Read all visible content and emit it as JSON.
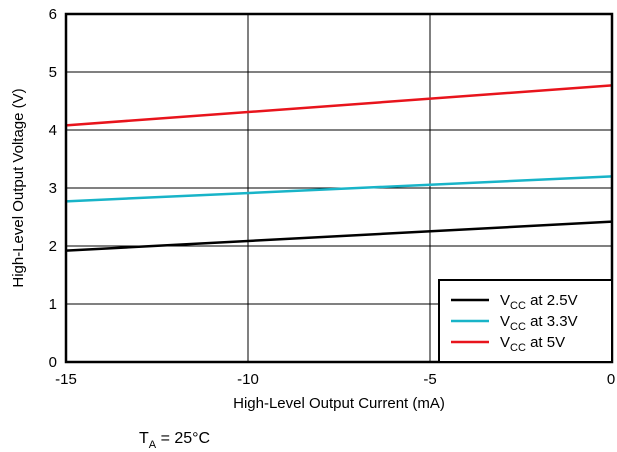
{
  "chart_data": {
    "type": "line",
    "xlabel": "High-Level Output Current (mA)",
    "ylabel": "High-Level Output Voltage (V)",
    "xlim": [
      -15,
      0
    ],
    "ylim": [
      0,
      6
    ],
    "x_ticks": [
      -15,
      -10,
      -5,
      0
    ],
    "x_tick_labels": [
      "-15",
      "-10",
      "-5",
      "0"
    ],
    "y_ticks": [
      0,
      1,
      2,
      3,
      4,
      5,
      6
    ],
    "y_tick_labels": [
      "0",
      "1",
      "2",
      "3",
      "4",
      "5",
      "6"
    ],
    "grid": true,
    "legend_position": "bottom-right",
    "series": [
      {
        "name": "V_CC at 2.5V",
        "legend_main": "V",
        "legend_sub": "CC",
        "legend_rest": " at 2.5V",
        "color": "#000000",
        "x": [
          -15,
          0
        ],
        "y": [
          1.92,
          2.42
        ]
      },
      {
        "name": "V_CC at 3.3V",
        "legend_main": "V",
        "legend_sub": "CC",
        "legend_rest": " at 3.3V",
        "color": "#18b4c8",
        "x": [
          -15,
          0
        ],
        "y": [
          2.77,
          3.2
        ]
      },
      {
        "name": "V_CC at 5V",
        "legend_main": "V",
        "legend_sub": "CC",
        "legend_rest": " at 5V",
        "color": "#e8141c",
        "x": [
          -15,
          0
        ],
        "y": [
          4.08,
          4.77
        ]
      }
    ],
    "annotation": {
      "main": "T",
      "sub": "A",
      "rest": " = 25°C"
    }
  }
}
